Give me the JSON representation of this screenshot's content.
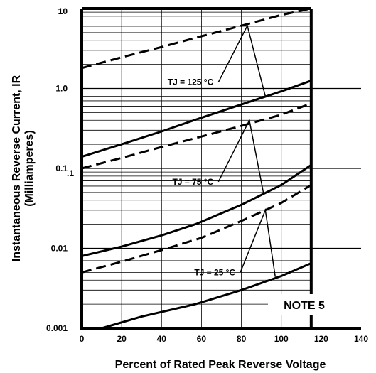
{
  "chart_data": {
    "type": "line",
    "xlabel": "Percent of Rated Peak Reverse Voltage",
    "ylabel_line1": "Instantaneous Reverse Current, IR",
    "ylabel_line2": "(Milliamperes)",
    "xlim": [
      0,
      140
    ],
    "ylim": [
      0.001,
      10
    ],
    "yscale": "log",
    "x_ticks": [
      "0",
      "20",
      "40",
      "60",
      "80",
      "100",
      "120",
      "140"
    ],
    "y_ticks": [
      "0.001",
      "0.01",
      "0.1",
      "1.0",
      "10"
    ],
    "y_tick_extra": ".1",
    "note": "NOTE 5",
    "series": [
      {
        "label": "TJ = 125 °C",
        "style": "solid",
        "x": [
          0,
          20,
          40,
          60,
          80,
          100,
          115
        ],
        "y": [
          0.14,
          0.2,
          0.29,
          0.43,
          0.63,
          0.92,
          1.25
        ]
      },
      {
        "label": "TJ = 125 °C",
        "style": "dashed",
        "x": [
          0,
          20,
          40,
          60,
          80,
          100,
          115
        ],
        "y": [
          1.8,
          2.45,
          3.3,
          4.5,
          6.1,
          8.3,
          10
        ]
      },
      {
        "label": "TJ = 75 °C",
        "style": "solid",
        "x": [
          0,
          20,
          40,
          57,
          80,
          100,
          115
        ],
        "y": [
          0.008,
          0.0105,
          0.0145,
          0.02,
          0.035,
          0.062,
          0.11
        ]
      },
      {
        "label": "TJ = 75 °C",
        "style": "dashed",
        "x": [
          0,
          20,
          40,
          60,
          80,
          100,
          115
        ],
        "y": [
          0.1,
          0.135,
          0.185,
          0.25,
          0.34,
          0.47,
          0.65
        ]
      },
      {
        "label": "TJ = 25 °C",
        "style": "solid",
        "x": [
          10,
          30,
          57,
          80,
          100,
          115
        ],
        "y": [
          0.001,
          0.0014,
          0.002,
          0.003,
          0.0045,
          0.0065
        ]
      },
      {
        "label": "TJ = 25 °C",
        "style": "dashed",
        "x": [
          0,
          20,
          40,
          60,
          80,
          100,
          115
        ],
        "y": [
          0.005,
          0.0068,
          0.0095,
          0.0135,
          0.022,
          0.037,
          0.062
        ]
      }
    ],
    "annotations": [
      {
        "text": "TJ = 125 °C",
        "label_x": 66,
        "label_y": 1.2,
        "pointer_to": [
          [
            83,
            6.1
          ],
          [
            92,
            0.8
          ]
        ]
      },
      {
        "text": "TJ = 75 °C",
        "label_x": 66,
        "label_y": 0.068,
        "pointer_to": [
          [
            84,
            0.4
          ],
          [
            91,
            0.05
          ]
        ]
      },
      {
        "text": "TJ = 25 °C",
        "label_x": 77,
        "label_y": 0.005,
        "pointer_to": [
          [
            92,
            0.03
          ],
          [
            97,
            0.0044
          ]
        ]
      }
    ]
  }
}
